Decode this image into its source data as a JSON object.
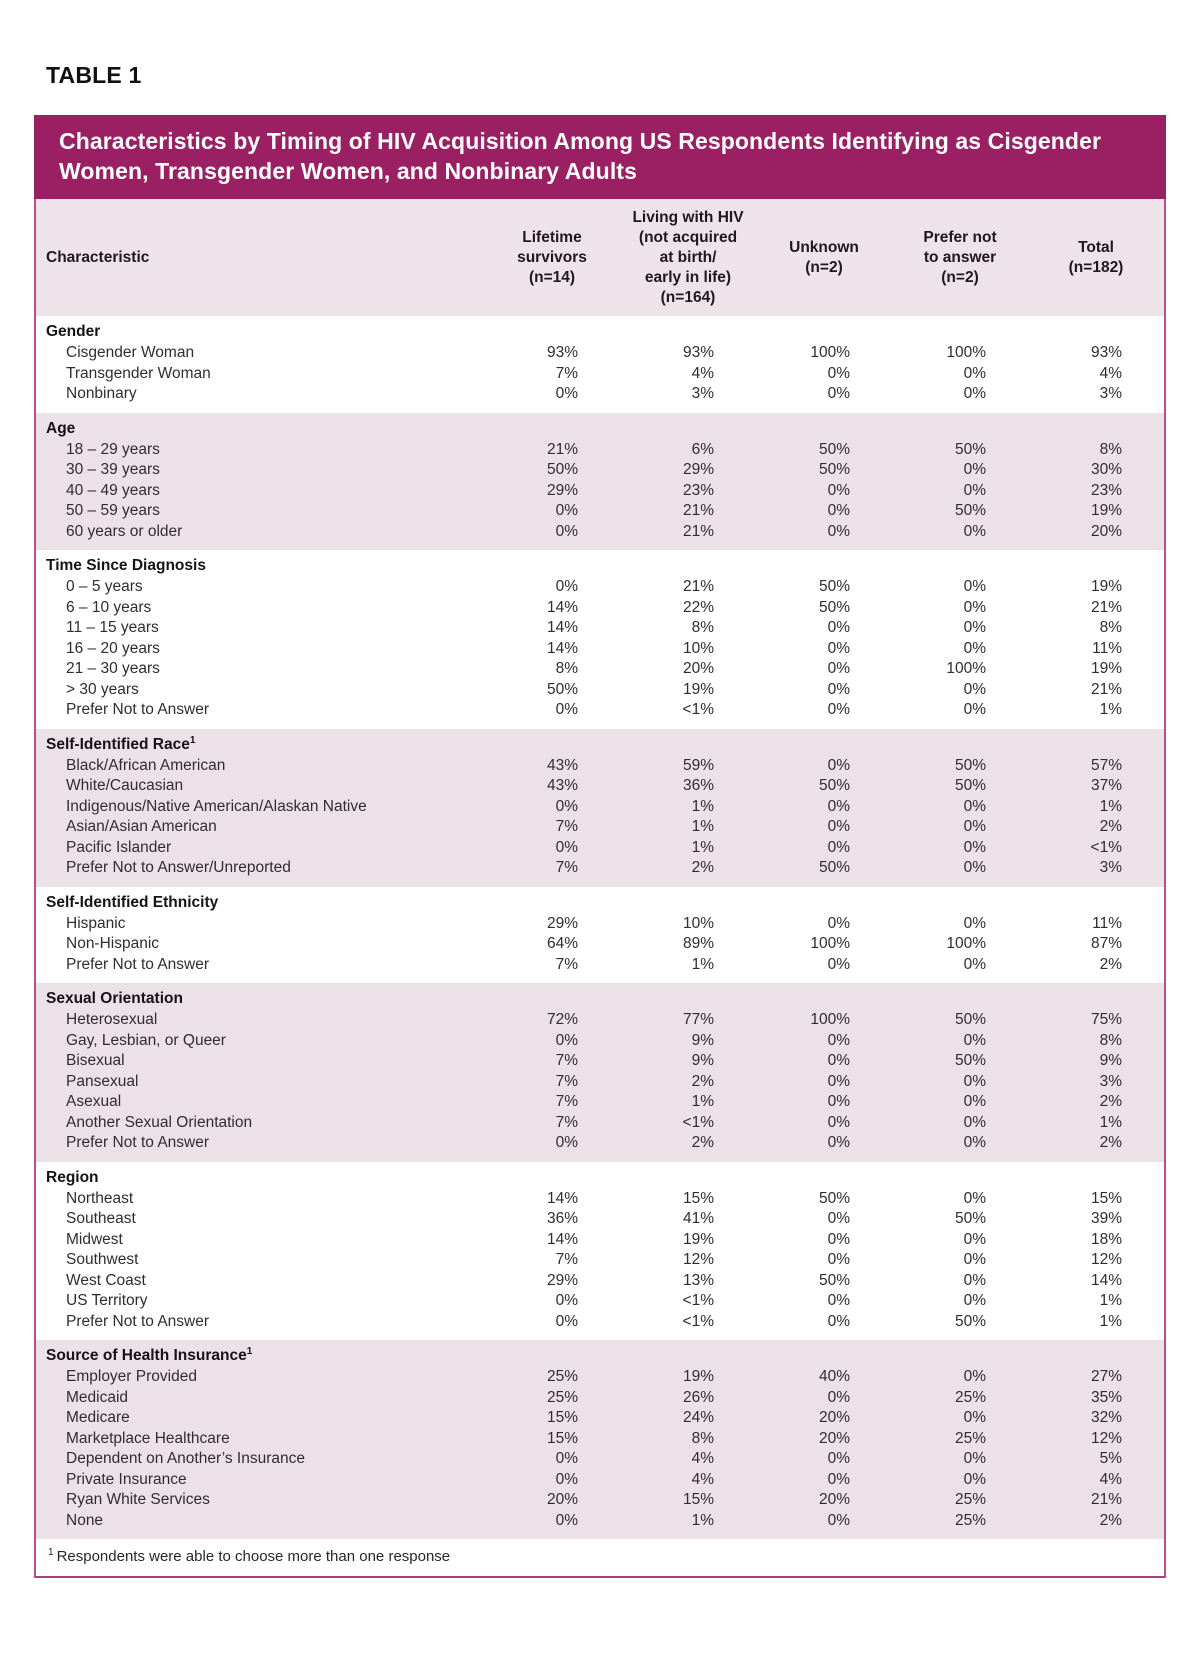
{
  "page": {
    "table_label": "TABLE 1",
    "title": "Characteristics by Timing of HIV Acquisition Among US Respondents Identifying as Cisgender Women, Transgender Women, and Nonbinary Adults",
    "footnote_marker": "1",
    "footnote_text": "Respondents were able to choose more than one response"
  },
  "colors": {
    "title_bar": "#9A2063",
    "row_tint": "#EDE1E8",
    "header_tint": "#EFE3EA",
    "table_border": "#BC4D8B",
    "text": "#272223"
  },
  "table": {
    "columns": [
      {
        "id": "characteristic",
        "lines": [
          "Characteristic"
        ]
      },
      {
        "id": "lifetime-survivors",
        "lines": [
          "Lifetime",
          "survivors",
          "(n=14)"
        ]
      },
      {
        "id": "living-with-hiv",
        "lines": [
          "Living with HIV",
          "(not acquired",
          "at birth/",
          "early in life)",
          "(n=164)"
        ]
      },
      {
        "id": "unknown",
        "lines": [
          "Unknown",
          "(n=2)"
        ]
      },
      {
        "id": "prefer-not-to-answer",
        "lines": [
          "Prefer not",
          "to answer",
          "(n=2)"
        ]
      },
      {
        "id": "total",
        "lines": [
          "Total",
          "(n=182)"
        ]
      }
    ],
    "sections": [
      {
        "id": "gender",
        "name": "Gender",
        "sup": "",
        "tone": "white",
        "rows": [
          {
            "label": "Cisgender Woman",
            "values": [
              "93%",
              "93%",
              "100%",
              "100%",
              "93%"
            ]
          },
          {
            "label": "Transgender Woman",
            "values": [
              "7%",
              "4%",
              "0%",
              "0%",
              "4%"
            ]
          },
          {
            "label": "Nonbinary",
            "values": [
              "0%",
              "3%",
              "0%",
              "0%",
              "3%"
            ]
          }
        ]
      },
      {
        "id": "age",
        "name": "Age",
        "sup": "",
        "tone": "pink",
        "rows": [
          {
            "label": "18 – 29 years",
            "values": [
              "21%",
              "6%",
              "50%",
              "50%",
              "8%"
            ]
          },
          {
            "label": "30 – 39 years",
            "values": [
              "50%",
              "29%",
              "50%",
              "0%",
              "30%"
            ]
          },
          {
            "label": "40 – 49 years",
            "values": [
              "29%",
              "23%",
              "0%",
              "0%",
              "23%"
            ]
          },
          {
            "label": "50 – 59 years",
            "values": [
              "0%",
              "21%",
              "0%",
              "50%",
              "19%"
            ]
          },
          {
            "label": "60 years or older",
            "values": [
              "0%",
              "21%",
              "0%",
              "0%",
              "20%"
            ]
          }
        ]
      },
      {
        "id": "time-since-diagnosis",
        "name": "Time Since Diagnosis",
        "sup": "",
        "tone": "white",
        "rows": [
          {
            "label": "0 – 5 years",
            "values": [
              "0%",
              "21%",
              "50%",
              "0%",
              "19%"
            ]
          },
          {
            "label": "6 – 10 years",
            "values": [
              "14%",
              "22%",
              "50%",
              "0%",
              "21%"
            ]
          },
          {
            "label": "11 – 15 years",
            "values": [
              "14%",
              "8%",
              "0%",
              "0%",
              "8%"
            ]
          },
          {
            "label": "16 – 20 years",
            "values": [
              "14%",
              "10%",
              "0%",
              "0%",
              "11%"
            ]
          },
          {
            "label": "21 – 30 years",
            "values": [
              "8%",
              "20%",
              "0%",
              "100%",
              "19%"
            ]
          },
          {
            "label": "> 30 years",
            "values": [
              "50%",
              "19%",
              "0%",
              "0%",
              "21%"
            ]
          },
          {
            "label": "Prefer Not to Answer",
            "values": [
              "0%",
              "<1%",
              "0%",
              "0%",
              "1%"
            ]
          }
        ]
      },
      {
        "id": "self-identified-race",
        "name": "Self-Identified Race",
        "sup": "1",
        "tone": "pink",
        "rows": [
          {
            "label": "Black/African American",
            "values": [
              "43%",
              "59%",
              "0%",
              "50%",
              "57%"
            ]
          },
          {
            "label": "White/Caucasian",
            "values": [
              "43%",
              "36%",
              "50%",
              "50%",
              "37%"
            ]
          },
          {
            "label": "Indigenous/Native American/Alaskan Native",
            "values": [
              "0%",
              "1%",
              "0%",
              "0%",
              "1%"
            ]
          },
          {
            "label": "Asian/Asian American",
            "values": [
              "7%",
              "1%",
              "0%",
              "0%",
              "2%"
            ]
          },
          {
            "label": "Pacific Islander",
            "values": [
              "0%",
              "1%",
              "0%",
              "0%",
              "<1%"
            ]
          },
          {
            "label": "Prefer Not to Answer/Unreported",
            "values": [
              "7%",
              "2%",
              "50%",
              "0%",
              "3%"
            ]
          }
        ]
      },
      {
        "id": "self-identified-ethnicity",
        "name": "Self-Identified Ethnicity",
        "sup": "",
        "tone": "white",
        "rows": [
          {
            "label": "Hispanic",
            "values": [
              "29%",
              "10%",
              "0%",
              "0%",
              "11%"
            ]
          },
          {
            "label": "Non-Hispanic",
            "values": [
              "64%",
              "89%",
              "100%",
              "100%",
              "87%"
            ]
          },
          {
            "label": "Prefer Not to Answer",
            "values": [
              "7%",
              "1%",
              "0%",
              "0%",
              "2%"
            ]
          }
        ]
      },
      {
        "id": "sexual-orientation",
        "name": "Sexual Orientation",
        "sup": "",
        "tone": "pink",
        "rows": [
          {
            "label": "Heterosexual",
            "values": [
              "72%",
              "77%",
              "100%",
              "50%",
              "75%"
            ]
          },
          {
            "label": "Gay, Lesbian, or Queer",
            "values": [
              "0%",
              "9%",
              "0%",
              "0%",
              "8%"
            ]
          },
          {
            "label": "Bisexual",
            "values": [
              "7%",
              "9%",
              "0%",
              "50%",
              "9%"
            ]
          },
          {
            "label": "Pansexual",
            "values": [
              "7%",
              "2%",
              "0%",
              "0%",
              "3%"
            ]
          },
          {
            "label": "Asexual",
            "values": [
              "7%",
              "1%",
              "0%",
              "0%",
              "2%"
            ]
          },
          {
            "label": "Another Sexual Orientation",
            "values": [
              "7%",
              "<1%",
              "0%",
              "0%",
              "1%"
            ]
          },
          {
            "label": "Prefer Not to Answer",
            "values": [
              "0%",
              "2%",
              "0%",
              "0%",
              "2%"
            ]
          }
        ]
      },
      {
        "id": "region",
        "name": "Region",
        "sup": "",
        "tone": "white",
        "rows": [
          {
            "label": "Northeast",
            "values": [
              "14%",
              "15%",
              "50%",
              "0%",
              "15%"
            ]
          },
          {
            "label": "Southeast",
            "values": [
              "36%",
              "41%",
              "0%",
              "50%",
              "39%"
            ]
          },
          {
            "label": "Midwest",
            "values": [
              "14%",
              "19%",
              "0%",
              "0%",
              "18%"
            ]
          },
          {
            "label": "Southwest",
            "values": [
              "7%",
              "12%",
              "0%",
              "0%",
              "12%"
            ]
          },
          {
            "label": "West Coast",
            "values": [
              "29%",
              "13%",
              "50%",
              "0%",
              "14%"
            ]
          },
          {
            "label": "US Territory",
            "values": [
              "0%",
              "<1%",
              "0%",
              "0%",
              "1%"
            ]
          },
          {
            "label": "Prefer Not to Answer",
            "values": [
              "0%",
              "<1%",
              "0%",
              "50%",
              "1%"
            ]
          }
        ]
      },
      {
        "id": "source-of-health-insurance",
        "name": "Source of Health Insurance",
        "sup": "1",
        "tone": "pink",
        "rows": [
          {
            "label": "Employer Provided",
            "values": [
              "25%",
              "19%",
              "40%",
              "0%",
              "27%"
            ]
          },
          {
            "label": "Medicaid",
            "values": [
              "25%",
              "26%",
              "0%",
              "25%",
              "35%"
            ]
          },
          {
            "label": "Medicare",
            "values": [
              "15%",
              "24%",
              "20%",
              "0%",
              "32%"
            ]
          },
          {
            "label": "Marketplace Healthcare",
            "values": [
              "15%",
              "8%",
              "20%",
              "25%",
              "12%"
            ]
          },
          {
            "label": "Dependent on Another’s Insurance",
            "values": [
              "0%",
              "4%",
              "0%",
              "0%",
              "5%"
            ]
          },
          {
            "label": "Private Insurance",
            "values": [
              "0%",
              "4%",
              "0%",
              "0%",
              "4%"
            ]
          },
          {
            "label": "Ryan White Services",
            "values": [
              "20%",
              "15%",
              "20%",
              "25%",
              "21%"
            ]
          },
          {
            "label": "None",
            "values": [
              "0%",
              "1%",
              "0%",
              "25%",
              "2%"
            ]
          }
        ]
      }
    ]
  }
}
